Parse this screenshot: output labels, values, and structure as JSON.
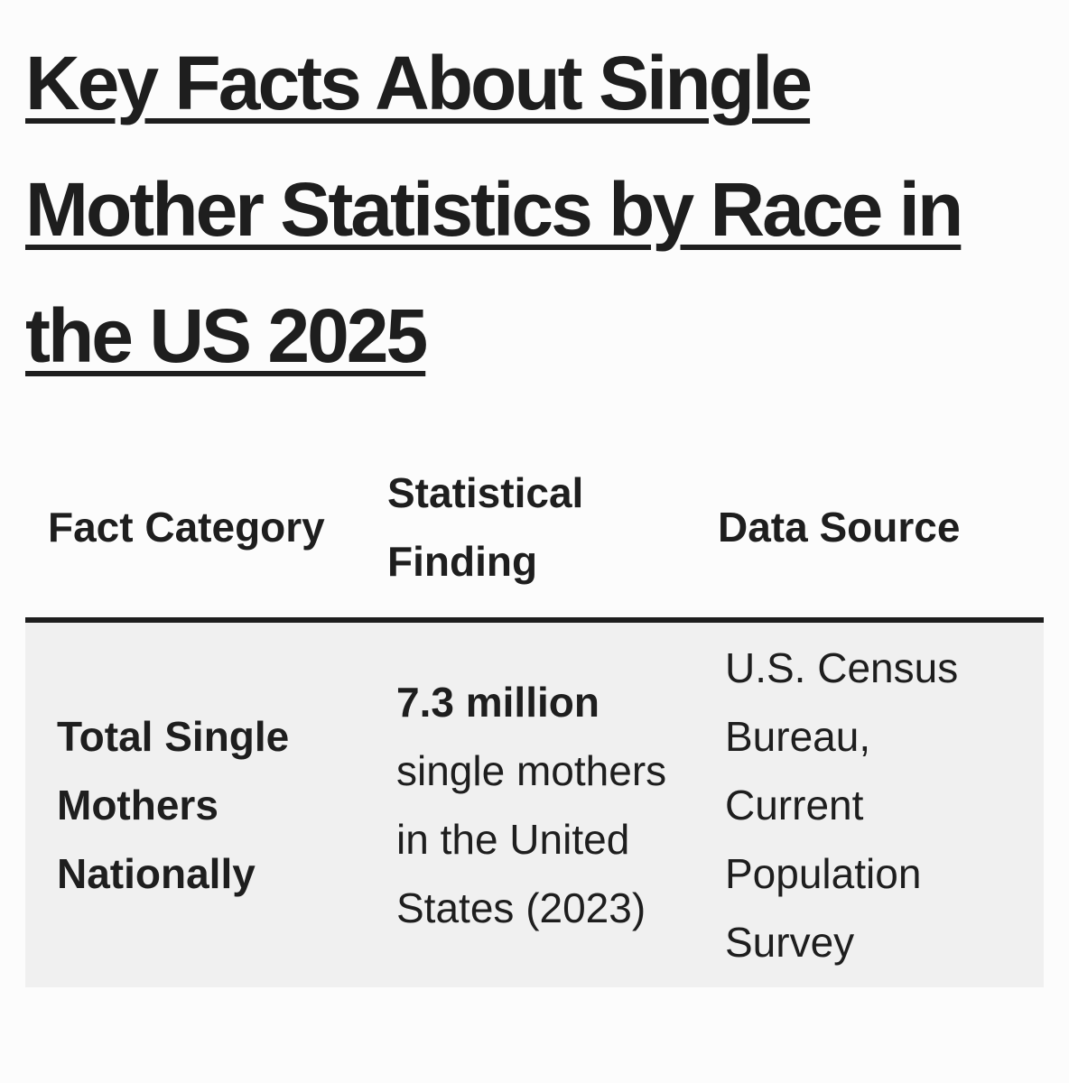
{
  "article": {
    "title": "Key Facts About Single Mother Statistics by Race in the US 2025"
  },
  "table": {
    "headers": [
      "Fact Category",
      "Statistical Finding",
      "Data Source"
    ],
    "rows": [
      {
        "category": "Total Single Mothers Nationally",
        "finding_highlight": "7.3 million",
        "finding_rest": "single mothers in the United States (2023)",
        "source": "U.S. Census Bureau, Current Population Survey"
      }
    ]
  }
}
